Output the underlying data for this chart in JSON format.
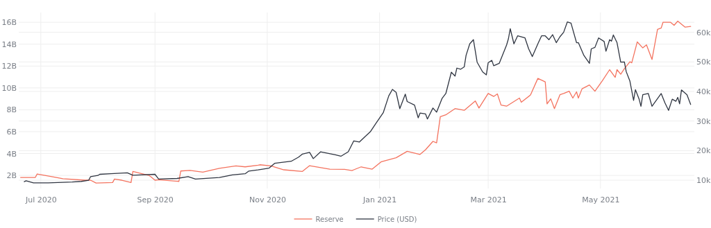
{
  "chart_data": {
    "type": "line",
    "xlim": [
      "2020-06-19",
      "2021-06-21"
    ],
    "xticks": [
      {
        "value": "2020-07-01",
        "label": "Jul 2020"
      },
      {
        "value": "2020-09-01",
        "label": "Sep 2020"
      },
      {
        "value": "2020-11-01",
        "label": "Nov 2020"
      },
      {
        "value": "2021-01-01",
        "label": "Jan 2021"
      },
      {
        "value": "2021-03-01",
        "label": "Mar 2021"
      },
      {
        "value": "2021-05-01",
        "label": "May 2021"
      }
    ],
    "ylim": [
      0.8,
      16.9
    ],
    "yticks": [
      {
        "value": 2,
        "label": "2B"
      },
      {
        "value": 4,
        "label": "4B"
      },
      {
        "value": 6,
        "label": "6B"
      },
      {
        "value": 8,
        "label": "8B"
      },
      {
        "value": 10,
        "label": "10B"
      },
      {
        "value": 12,
        "label": "12B"
      },
      {
        "value": 14,
        "label": "14B"
      },
      {
        "value": 16,
        "label": "16B"
      }
    ],
    "y2lim": [
      7.2,
      66.7
    ],
    "y2ticks": [
      {
        "value": 10,
        "label": "10k"
      },
      {
        "value": 20,
        "label": "20k"
      },
      {
        "value": 30,
        "label": "30k"
      },
      {
        "value": 40,
        "label": "40k"
      },
      {
        "value": 50,
        "label": "50k"
      },
      {
        "value": 60,
        "label": "60k"
      }
    ],
    "grid": true,
    "legend": "bottom",
    "line_style": "solid",
    "marker": "none",
    "series": [
      {
        "name": "Reserve",
        "color": "#f4735f",
        "x": [
          "2020-06-20",
          "2020-06-28",
          "2020-06-29",
          "2020-07-13",
          "2020-07-25",
          "2020-07-28",
          "2020-07-31",
          "2020-08-09",
          "2020-08-10",
          "2020-08-14",
          "2020-08-19",
          "2020-08-20",
          "2020-08-29",
          "2020-09-01",
          "2020-09-03",
          "2020-09-14",
          "2020-09-15",
          "2020-09-20",
          "2020-09-27",
          "2020-10-06",
          "2020-10-15",
          "2020-10-20",
          "2020-10-27",
          "2020-10-28",
          "2020-11-03",
          "2020-11-10",
          "2020-11-20",
          "2020-11-24",
          "2020-12-05",
          "2020-12-13",
          "2020-12-17",
          "2020-12-22",
          "2020-12-28",
          "2021-01-02",
          "2021-01-10",
          "2021-01-16",
          "2021-01-23",
          "2021-01-26",
          "2021-01-30",
          "2021-02-01",
          "2021-02-03",
          "2021-02-06",
          "2021-02-11",
          "2021-02-16",
          "2021-02-22",
          "2021-02-24",
          "2021-03-01",
          "2021-03-04",
          "2021-03-06",
          "2021-03-08",
          "2021-03-11",
          "2021-03-18",
          "2021-03-19",
          "2021-03-24",
          "2021-03-28",
          "2021-04-01",
          "2021-04-02",
          "2021-04-04",
          "2021-04-06",
          "2021-04-09",
          "2021-04-11",
          "2021-04-14",
          "2021-04-16",
          "2021-04-18",
          "2021-04-19",
          "2021-04-21",
          "2021-04-25",
          "2021-04-28",
          "2021-05-02",
          "2021-05-06",
          "2021-05-09",
          "2021-05-10",
          "2021-05-12",
          "2021-05-14",
          "2021-05-17",
          "2021-05-18",
          "2021-05-21",
          "2021-05-24",
          "2021-05-26",
          "2021-05-29",
          "2021-06-01",
          "2021-06-03",
          "2021-06-04",
          "2021-06-08",
          "2021-06-10",
          "2021-06-12",
          "2021-06-16",
          "2021-06-19"
        ],
        "values": [
          1.81,
          1.81,
          2.13,
          1.7,
          1.56,
          1.56,
          1.3,
          1.35,
          1.66,
          1.56,
          1.35,
          2.36,
          1.98,
          1.56,
          1.6,
          1.45,
          2.4,
          2.46,
          2.3,
          2.65,
          2.87,
          2.78,
          2.93,
          2.97,
          2.87,
          2.51,
          2.36,
          2.89,
          2.57,
          2.55,
          2.44,
          2.78,
          2.57,
          3.25,
          3.61,
          4.2,
          3.92,
          4.35,
          5.11,
          4.98,
          7.37,
          7.54,
          8.11,
          7.95,
          8.81,
          8.16,
          9.49,
          9.22,
          9.45,
          8.43,
          8.33,
          9.07,
          8.69,
          9.35,
          10.87,
          10.55,
          8.54,
          9.0,
          8.11,
          9.38,
          9.49,
          9.7,
          9.07,
          9.64,
          9.07,
          9.92,
          10.27,
          9.7,
          10.65,
          11.67,
          10.97,
          11.67,
          11.25,
          11.76,
          12.39,
          12.3,
          14.21,
          13.66,
          13.94,
          12.6,
          15.35,
          15.48,
          16.01,
          16.01,
          15.73,
          16.11,
          15.56,
          15.62
        ]
      },
      {
        "name": "Price (USD)",
        "color": "#2f3541",
        "axis": "y2",
        "x": [
          "2020-06-22",
          "2020-06-23",
          "2020-06-27",
          "2020-07-05",
          "2020-07-18",
          "2020-07-23",
          "2020-07-27",
          "2020-07-28",
          "2020-08-01",
          "2020-08-02",
          "2020-08-08",
          "2020-08-17",
          "2020-08-20",
          "2020-09-01",
          "2020-09-03",
          "2020-09-13",
          "2020-09-19",
          "2020-09-23",
          "2020-10-06",
          "2020-10-13",
          "2020-10-20",
          "2020-10-22",
          "2020-10-27",
          "2020-11-02",
          "2020-11-05",
          "2020-11-14",
          "2020-11-18",
          "2020-11-20",
          "2020-11-24",
          "2020-11-26",
          "2020-11-30",
          "2020-12-08",
          "2020-12-11",
          "2020-12-15",
          "2020-12-18",
          "2020-12-21",
          "2020-12-27",
          "2020-12-30",
          "2021-01-03",
          "2021-01-06",
          "2021-01-08",
          "2021-01-10",
          "2021-01-12",
          "2021-01-15",
          "2021-01-16",
          "2021-01-20",
          "2021-01-22",
          "2021-01-23",
          "2021-01-26",
          "2021-01-27",
          "2021-01-30",
          "2021-02-01",
          "2021-02-04",
          "2021-02-06",
          "2021-02-09",
          "2021-02-11",
          "2021-02-12",
          "2021-02-14",
          "2021-02-16",
          "2021-02-17",
          "2021-02-19",
          "2021-02-21",
          "2021-02-23",
          "2021-02-26",
          "2021-02-28",
          "2021-03-01",
          "2021-03-03",
          "2021-03-04",
          "2021-03-07",
          "2021-03-11",
          "2021-03-12",
          "2021-03-13",
          "2021-03-15",
          "2021-03-17",
          "2021-03-21",
          "2021-03-23",
          "2021-03-25",
          "2021-03-28",
          "2021-03-30",
          "2021-04-01",
          "2021-04-03",
          "2021-04-05",
          "2021-04-07",
          "2021-04-09",
          "2021-04-11",
          "2021-04-13",
          "2021-04-15",
          "2021-04-18",
          "2021-04-19",
          "2021-04-22",
          "2021-04-25",
          "2021-04-26",
          "2021-04-28",
          "2021-04-30",
          "2021-05-03",
          "2021-05-04",
          "2021-05-06",
          "2021-05-07",
          "2021-05-08",
          "2021-05-10",
          "2021-05-12",
          "2021-05-14",
          "2021-05-15",
          "2021-05-17",
          "2021-05-19",
          "2021-05-20",
          "2021-05-22",
          "2021-05-23",
          "2021-05-24",
          "2021-05-27",
          "2021-05-29",
          "2021-06-03",
          "2021-06-05",
          "2021-06-07",
          "2021-06-09",
          "2021-06-11",
          "2021-06-12",
          "2021-06-13",
          "2021-06-14",
          "2021-06-17",
          "2021-06-19"
        ],
        "values": [
          9.5,
          9.8,
          9.1,
          9.1,
          9.4,
          9.6,
          10.0,
          11.2,
          11.6,
          12.0,
          12.2,
          12.5,
          11.7,
          12.0,
          10.4,
          10.6,
          11.2,
          10.4,
          10.9,
          11.8,
          12.2,
          13.1,
          13.5,
          14.1,
          15.7,
          16.4,
          17.8,
          18.8,
          19.4,
          17.3,
          19.6,
          18.6,
          18.1,
          19.6,
          23.3,
          22.9,
          26.4,
          29.2,
          32.8,
          38.5,
          40.7,
          39.7,
          34.2,
          39.1,
          36.6,
          35.4,
          31.1,
          32.7,
          32.4,
          30.7,
          34.4,
          33.0,
          37.7,
          39.3,
          46.5,
          45.2,
          47.9,
          47.5,
          48.3,
          52.2,
          56.1,
          57.5,
          49.9,
          46.6,
          45.6,
          49.7,
          50.5,
          48.7,
          49.5,
          55.7,
          57.8,
          61.2,
          56.1,
          58.8,
          58.1,
          54.4,
          51.8,
          56.1,
          58.8,
          58.8,
          57.5,
          59.2,
          56.5,
          58.5,
          60.0,
          63.5,
          63.1,
          56.5,
          56.5,
          52.2,
          49.5,
          54.4,
          54.9,
          58.1,
          56.9,
          53.6,
          57.5,
          57.0,
          59.1,
          56.5,
          49.9,
          50.0,
          46.7,
          43.5,
          37.0,
          40.6,
          37.4,
          35.0,
          38.9,
          39.3,
          35.0,
          39.3,
          36.2,
          33.6,
          37.4,
          36.7,
          38.0,
          35.8,
          40.5,
          38.9,
          35.6
        ]
      }
    ]
  }
}
